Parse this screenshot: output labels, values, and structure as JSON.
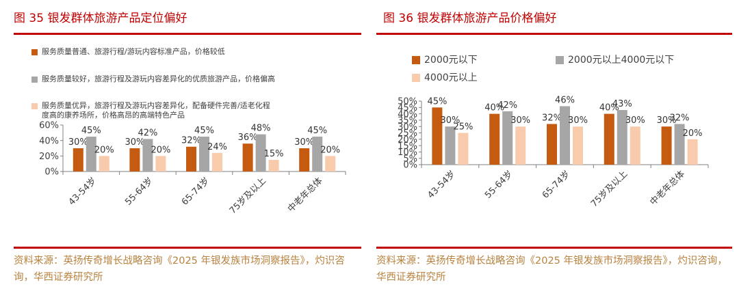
{
  "left": {
    "title": "图 35 银发群体旅游产品定位偏好",
    "source": "资料来源：英扬传奇增长战略咨询《2025 年银发族市场洞察报告》，灼识咨询，华西证券研究所"
  },
  "right": {
    "title": "图 36 银发群体旅游产品价格偏好",
    "source": "资料来源：英扬传奇增长战略咨询《2025 年银发族市场洞察报告》，灼识咨询，华西证券研究所"
  },
  "chart_data": [
    {
      "type": "bar",
      "title": "图 35 银发群体旅游产品定位偏好",
      "categories": [
        "43-54岁",
        "55-64岁",
        "65-74岁",
        "75岁及以上",
        "中老年总体"
      ],
      "series": [
        {
          "name": "服务质量普通、旅游行程/游玩内容标准产品，价格较低",
          "color": "#c55a11",
          "values": [
            30,
            30,
            32,
            36,
            30
          ]
        },
        {
          "name": "服务质量较好，旅游行程及游玩内容差异化的优质旅游产品，价格偏高",
          "color": "#a6a6a6",
          "values": [
            45,
            42,
            45,
            48,
            45
          ]
        },
        {
          "name": "服务质量优异，旅游行程及游玩内容差异化，配备硬件完善/适老化程度高的康养场所，价格高昂的高端特色产品",
          "color": "#f8cbad",
          "values": [
            20,
            20,
            24,
            15,
            20
          ]
        }
      ],
      "yticks": [
        "0%",
        "20%",
        "40%",
        "60%"
      ],
      "ylim": [
        0,
        60
      ],
      "xlabel": "",
      "ylabel": "",
      "grid": false,
      "legend_position": "top"
    },
    {
      "type": "bar",
      "title": "图 36 银发群体旅游产品价格偏好",
      "categories": [
        "43-54岁",
        "55-64岁",
        "65-74岁",
        "75岁及以上",
        "中老年总体"
      ],
      "series": [
        {
          "name": "2000元以下",
          "color": "#c55a11",
          "values": [
            45,
            40,
            32,
            40,
            30
          ]
        },
        {
          "name": "2000元以上4000元以下",
          "color": "#a6a6a6",
          "values": [
            30,
            42,
            46,
            43,
            32
          ]
        },
        {
          "name": "4000元以上",
          "color": "#f8cbad",
          "values": [
            25,
            30,
            30,
            30,
            20
          ]
        }
      ],
      "yticks": [
        "0%",
        "5%",
        "10%",
        "15%",
        "20%",
        "25%",
        "30%",
        "35%",
        "40%",
        "45%",
        "50%"
      ],
      "ylim": [
        0,
        50
      ],
      "xlabel": "",
      "ylabel": "",
      "grid": false,
      "legend_position": "top"
    }
  ]
}
